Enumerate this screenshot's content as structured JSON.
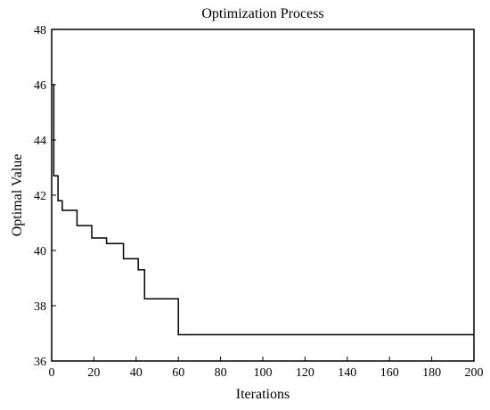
{
  "chart_data": {
    "type": "line",
    "title": "Optimization Process",
    "xlabel": "Iterations",
    "ylabel": "Optimal Value",
    "xlim": [
      0,
      200
    ],
    "ylim": [
      36,
      48
    ],
    "xticks": [
      "0",
      "20",
      "40",
      "60",
      "80",
      "100",
      "120",
      "140",
      "160",
      "180",
      "200"
    ],
    "yticks": [
      "36",
      "38",
      "40",
      "42",
      "44",
      "46",
      "48"
    ],
    "grid": false,
    "line_color": "#000000",
    "step": true,
    "series": [
      {
        "x": [
          0,
          1,
          3,
          5,
          12,
          19,
          26,
          34,
          41,
          44,
          46,
          60,
          200
        ],
        "y": [
          46.0,
          42.7,
          41.8,
          41.45,
          40.9,
          40.45,
          40.25,
          39.7,
          39.3,
          38.25,
          38.25,
          36.95,
          36.95
        ]
      }
    ]
  }
}
